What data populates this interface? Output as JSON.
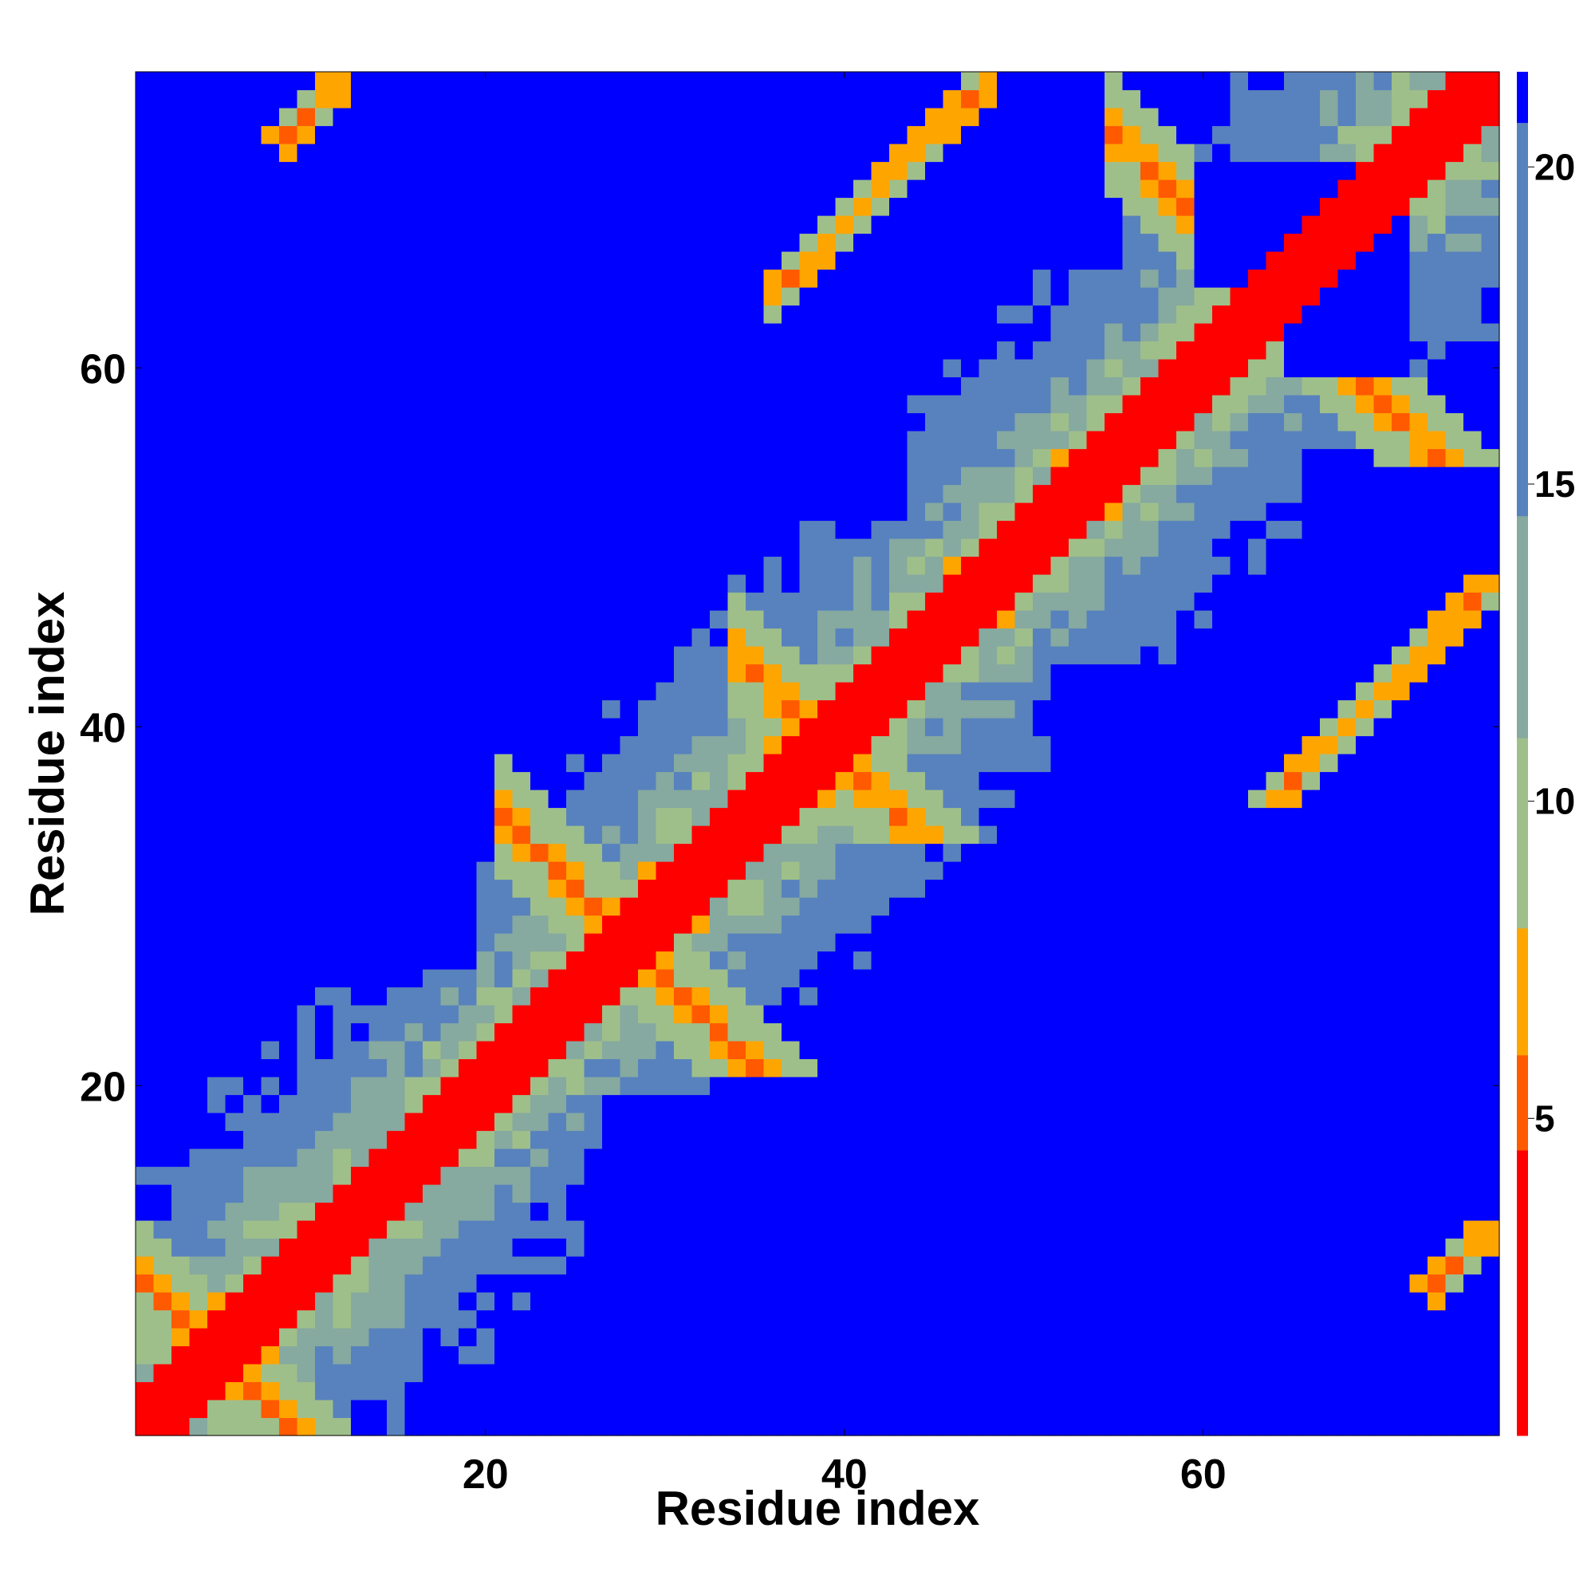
{
  "chart_data": {
    "type": "heatmap",
    "title": "",
    "xlabel": "Residue index",
    "ylabel": "Residue index",
    "n_residues": 76,
    "xlim": [
      0.5,
      76.5
    ],
    "ylim": [
      0.5,
      76.5
    ],
    "x_ticks": [
      20,
      40,
      60
    ],
    "y_ticks": [
      20,
      40,
      60
    ],
    "grid": false,
    "legend": "colorbar-right",
    "colorbar": {
      "ticks": [
        5,
        10,
        15,
        20
      ],
      "range": [
        0,
        21.5
      ],
      "colormap": [
        {
          "max": 4.5,
          "color": "#ff0000"
        },
        {
          "max": 6.0,
          "color": "#ff5a00"
        },
        {
          "max": 8.0,
          "color": "#ffa500"
        },
        {
          "max": 11.0,
          "color": "#9fbf8a"
        },
        {
          "max": 14.5,
          "color": "#86a9a0"
        },
        {
          "max": 20.7,
          "color": "#5882bd"
        },
        {
          "max": 99,
          "color": "#0000ff"
        }
      ]
    },
    "matrix_model": "Symmetric residue–residue distance map: d = |i-j| near diagonal (d<=4 red), orange contact ridges along antiparallel pairs (i+j=const) and parallel pairs, blue (>20) blocks between distant segments.",
    "contact_features": [
      {
        "kind": "antiparallel",
        "sum": 10,
        "ranges": [
          [
            1,
            9
          ]
        ]
      },
      {
        "kind": "antiparallel",
        "sum": 56,
        "ranges": [
          [
            21,
            35
          ]
        ]
      },
      {
        "kind": "antiparallel",
        "sum": 78,
        "ranges": [
          [
            34,
            44
          ]
        ]
      },
      {
        "kind": "antiparallel",
        "sum": 128,
        "ranges": [
          [
            55,
            73
          ]
        ]
      },
      {
        "kind": "parallel",
        "offset": 64,
        "ranges": [
          [
            1,
            12
          ]
        ]
      },
      {
        "kind": "parallel",
        "offset": 28,
        "ranges": [
          [
            36,
            48
          ]
        ]
      }
    ],
    "blue_blocks": [
      [
        [
          8,
          20
        ],
        [
          47,
          56
        ]
      ],
      [
        [
          6,
          19
        ],
        [
          27,
          34
        ]
      ],
      [
        [
          9,
          16
        ],
        [
          38,
          42
        ]
      ],
      [
        [
          35,
          39
        ],
        [
          6,
          12
        ]
      ],
      [
        [
          46,
          52
        ],
        [
          8,
          22
        ]
      ],
      [
        [
          53,
          59
        ],
        [
          10,
          19
        ]
      ],
      [
        [
          26,
          33
        ],
        [
          2,
          16
        ]
      ],
      [
        [
          38,
          43
        ],
        [
          52,
          57
        ]
      ],
      [
        [
          61,
          68
        ],
        [
          44,
          48
        ]
      ],
      [
        [
          65,
          71
        ],
        [
          60,
          71
        ]
      ],
      [
        [
          1,
          8
        ],
        [
          62,
          72
        ]
      ]
    ]
  }
}
